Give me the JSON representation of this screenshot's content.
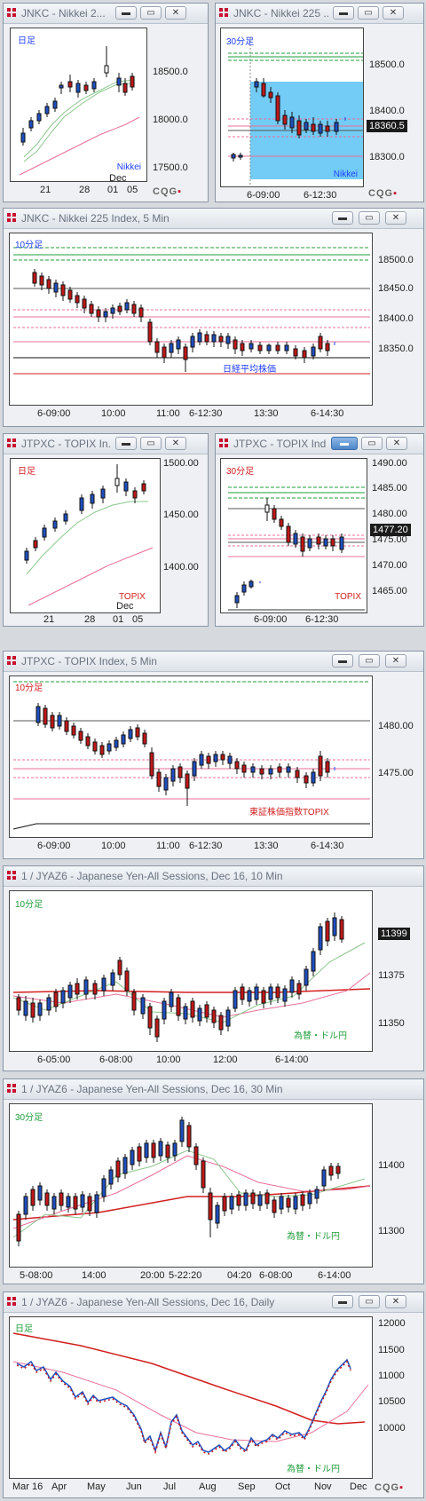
{
  "colors": {
    "bg": "#d6d9de",
    "up": "#1f4fbf",
    "down": "#c01818",
    "green": "#1f9d3a",
    "pink": "#e8709a",
    "red": "#d21f1f",
    "blue": "#2040ff",
    "selection": "#5bc3f5"
  },
  "window_buttons": {
    "minimize": "▬",
    "restore": "▭",
    "close": "✕"
  },
  "windows": [
    {
      "id": "w1",
      "title": "JNKC - Nikkei 2...",
      "tf": "日足",
      "name": "Nikkei",
      "yticks": [
        "18500.0",
        "18000.0",
        "17500.0"
      ],
      "xticks": [
        "21",
        "28",
        "01",
        "05"
      ],
      "xsub": "Dec",
      "logo": "CQG"
    },
    {
      "id": "w2",
      "title": "JNKC - Nikkei 225 ...",
      "tf": "30分足",
      "name": "Nikkei",
      "yticks": [
        "18500.0",
        "18400.0",
        "18300.0"
      ],
      "price": "18360.5",
      "xticks": [
        "6-09:00",
        "6-12:30"
      ],
      "logo": "CQG"
    },
    {
      "id": "w3",
      "title": "JNKC - Nikkei 225 Index, 5 Min",
      "tf": "10分足",
      "name": "日経平均株価",
      "yticks": [
        "18500.0",
        "18450.0",
        "18400.0",
        "18350.0"
      ],
      "xticks": [
        "6-09:00",
        "10:00",
        "11:00",
        "6-12:30",
        "13:30",
        "6-14:30"
      ]
    },
    {
      "id": "w4",
      "title": "JTPXC - TOPIX In...",
      "tf": "日足",
      "name": "TOPIX",
      "yticks": [
        "1500.00",
        "1450.00",
        "1400.00"
      ],
      "xticks": [
        "21",
        "28",
        "01",
        "05"
      ],
      "xsub": "Dec"
    },
    {
      "id": "w5",
      "title": "JTPXC - TOPIX Ind...",
      "tf": "30分足",
      "name": "TOPIX",
      "yticks": [
        "1490.00",
        "1485.00",
        "1480.00",
        "1475.00",
        "1470.00",
        "1465.00"
      ],
      "price": "1477.20",
      "xticks": [
        "6-09:00",
        "6-12:30"
      ]
    },
    {
      "id": "w6",
      "title": "JTPXC - TOPIX Index, 5 Min",
      "tf": "10分足",
      "name": "東証株価指数TOPIX",
      "yticks": [
        "1480.00",
        "1475.00"
      ],
      "xticks": [
        "6-09:00",
        "10:00",
        "11:00",
        "6-12:30",
        "13:30",
        "6-14:30"
      ]
    },
    {
      "id": "w7",
      "title": "1 / JYAZ6 - Japanese Yen-All Sessions, Dec 16, 10 Min",
      "tf": "10分足",
      "name": "為替・ドル円",
      "yticks": [
        "11375",
        "11350"
      ],
      "price": "11399",
      "xticks": [
        "6-05:00",
        "6-08:00",
        "10:00",
        "12:00",
        "6-14:00"
      ]
    },
    {
      "id": "w8",
      "title": "1 / JYAZ6 - Japanese Yen-All Sessions, Dec 16, 30 Min",
      "tf": "30分足",
      "name": "為替・ドル円",
      "yticks": [
        "11400",
        "11300"
      ],
      "xticks": [
        "5-08:00",
        "14:00",
        "20:00",
        "5-22:20",
        "04:20",
        "6-08:00",
        "6-14:00"
      ]
    },
    {
      "id": "w9",
      "title": "1 / JYAZ6 - Japanese Yen-All Sessions, Dec 16, Daily",
      "tf": "日足",
      "name": "為替・ドル円",
      "yticks": [
        "12000",
        "11500",
        "11000",
        "10500",
        "10000"
      ],
      "xticks": [
        "Mar 16",
        "Apr",
        "May",
        "Jun",
        "Jul",
        "Aug",
        "Sep",
        "Oct",
        "Nov",
        "Dec"
      ],
      "logo": "CQG"
    }
  ]
}
